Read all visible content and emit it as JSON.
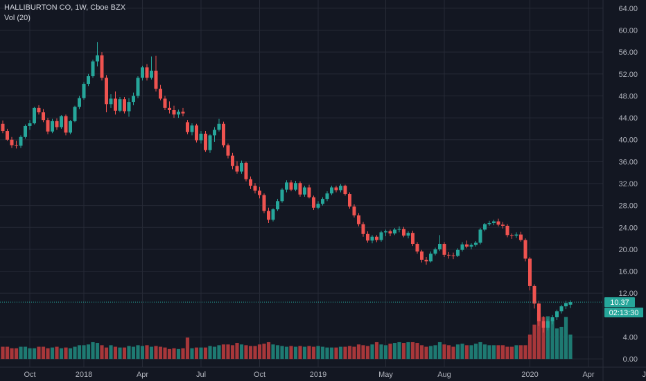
{
  "legend": {
    "title": "HALLIBURTON CO, 1W, Cboe BZX",
    "volume_label": "Vol (20)"
  },
  "colors": {
    "background": "#131722",
    "grid": "#262a36",
    "up": "#26a69a",
    "down": "#ef5350",
    "up_volume": "#1e7a72",
    "down_volume": "#a8373a",
    "text": "#b2b5be",
    "price_line": "#26a69a"
  },
  "chart_data": {
    "type": "candlestick",
    "y_axis": {
      "ticks": [
        "64.00",
        "60.00",
        "56.00",
        "52.00",
        "48.00",
        "44.00",
        "40.00",
        "36.00",
        "32.00",
        "28.00",
        "24.00",
        "20.00",
        "16.00",
        "12.00",
        "4.00",
        "0.00"
      ],
      "ylim": [
        -1.5,
        65.5
      ]
    },
    "x_axis": {
      "ticks": [
        "Oct",
        "2018",
        "Apr",
        "Jul",
        "Oct",
        "2019",
        "May",
        "Aug",
        "2020",
        "Apr",
        "Jul"
      ],
      "tick_weeks": [
        6,
        18,
        31,
        44,
        57,
        70,
        85,
        98,
        117,
        130,
        143
      ]
    },
    "last_price": {
      "value": 10.37,
      "label": "10.37",
      "countdown": "02:13:30"
    },
    "candles_weekly": [
      [
        42.9,
        43.5,
        41.2,
        41.6
      ],
      [
        41.6,
        42.0,
        39.8,
        40.0
      ],
      [
        40.0,
        40.5,
        38.5,
        39.0
      ],
      [
        39.0,
        39.8,
        38.4,
        38.9
      ],
      [
        38.9,
        40.8,
        38.5,
        40.5
      ],
      [
        40.5,
        42.8,
        40.2,
        42.5
      ],
      [
        42.5,
        43.6,
        41.8,
        43.0
      ],
      [
        43.0,
        46.0,
        42.8,
        45.8
      ],
      [
        45.8,
        46.3,
        44.6,
        45.0
      ],
      [
        45.0,
        45.6,
        43.2,
        43.6
      ],
      [
        43.6,
        44.0,
        41.0,
        41.5
      ],
      [
        41.5,
        43.8,
        41.2,
        43.4
      ],
      [
        43.4,
        43.9,
        41.8,
        42.3
      ],
      [
        42.3,
        44.5,
        42.0,
        44.3
      ],
      [
        44.3,
        44.6,
        40.8,
        41.3
      ],
      [
        41.3,
        43.6,
        41.0,
        43.4
      ],
      [
        43.4,
        46.2,
        43.2,
        46.0
      ],
      [
        46.0,
        48.0,
        45.6,
        47.6
      ],
      [
        47.6,
        50.5,
        47.3,
        50.2
      ],
      [
        50.2,
        52.0,
        49.8,
        51.6
      ],
      [
        51.6,
        54.6,
        51.3,
        54.3
      ],
      [
        54.3,
        57.8,
        53.4,
        55.4
      ],
      [
        55.4,
        56.0,
        50.8,
        51.3
      ],
      [
        51.3,
        51.8,
        45.0,
        46.5
      ],
      [
        46.5,
        48.3,
        45.8,
        47.5
      ],
      [
        47.5,
        48.8,
        44.6,
        45.3
      ],
      [
        45.3,
        47.8,
        45.0,
        47.4
      ],
      [
        47.4,
        47.8,
        44.8,
        45.2
      ],
      [
        45.2,
        47.6,
        44.2,
        46.9
      ],
      [
        46.9,
        48.6,
        46.3,
        48.0
      ],
      [
        48.0,
        51.6,
        47.6,
        51.3
      ],
      [
        51.3,
        53.5,
        50.8,
        53.2
      ],
      [
        53.2,
        53.8,
        50.8,
        51.3
      ],
      [
        51.3,
        55.2,
        51.0,
        52.6
      ],
      [
        52.6,
        55.3,
        48.8,
        49.3
      ],
      [
        49.3,
        50.0,
        47.2,
        47.5
      ],
      [
        47.5,
        48.0,
        45.4,
        45.8
      ],
      [
        45.8,
        47.0,
        44.8,
        45.4
      ],
      [
        45.4,
        46.2,
        44.0,
        44.6
      ],
      [
        44.6,
        45.5,
        44.0,
        45.1
      ],
      [
        45.1,
        45.8,
        44.3,
        44.8
      ],
      [
        43.2,
        43.6,
        41.0,
        41.4
      ],
      [
        41.4,
        43.0,
        40.8,
        42.6
      ],
      [
        42.6,
        42.9,
        39.5,
        39.9
      ],
      [
        39.9,
        41.6,
        39.3,
        41.1
      ],
      [
        41.1,
        41.6,
        37.8,
        38.1
      ],
      [
        38.1,
        41.0,
        37.6,
        40.8
      ],
      [
        40.8,
        42.3,
        39.6,
        41.8
      ],
      [
        41.8,
        43.8,
        41.5,
        42.9
      ],
      [
        42.9,
        43.3,
        38.6,
        39.0
      ],
      [
        39.0,
        39.3,
        36.6,
        37.1
      ],
      [
        37.1,
        37.6,
        34.6,
        35.2
      ],
      [
        35.2,
        36.1,
        33.8,
        34.2
      ],
      [
        34.2,
        36.2,
        33.8,
        35.8
      ],
      [
        35.8,
        36.0,
        32.4,
        32.8
      ],
      [
        32.8,
        33.3,
        31.0,
        31.6
      ],
      [
        31.6,
        32.1,
        30.2,
        30.7
      ],
      [
        30.7,
        31.4,
        29.3,
        29.9
      ],
      [
        29.9,
        30.2,
        26.6,
        27.0
      ],
      [
        27.0,
        27.6,
        24.8,
        25.4
      ],
      [
        25.4,
        27.5,
        25.1,
        27.3
      ],
      [
        27.3,
        29.2,
        27.0,
        28.8
      ],
      [
        28.8,
        31.2,
        28.5,
        30.9
      ],
      [
        30.9,
        32.6,
        30.4,
        32.2
      ],
      [
        32.2,
        32.6,
        30.6,
        30.9
      ],
      [
        30.9,
        32.5,
        30.6,
        32.1
      ],
      [
        32.1,
        32.4,
        29.6,
        30.0
      ],
      [
        30.0,
        31.6,
        29.6,
        31.3
      ],
      [
        31.3,
        31.8,
        29.3,
        29.5
      ],
      [
        29.5,
        29.8,
        27.2,
        27.6
      ],
      [
        27.6,
        28.8,
        27.3,
        28.3
      ],
      [
        28.3,
        29.5,
        28.0,
        29.2
      ],
      [
        29.2,
        30.6,
        28.8,
        30.2
      ],
      [
        30.2,
        31.6,
        29.9,
        31.3
      ],
      [
        31.3,
        31.6,
        30.4,
        30.8
      ],
      [
        30.8,
        31.9,
        30.4,
        31.6
      ],
      [
        31.6,
        31.8,
        29.8,
        30.1
      ],
      [
        30.1,
        30.4,
        27.4,
        27.8
      ],
      [
        27.8,
        28.2,
        25.8,
        26.2
      ],
      [
        26.2,
        26.6,
        24.2,
        24.6
      ],
      [
        24.6,
        25.0,
        22.3,
        22.8
      ],
      [
        22.8,
        23.3,
        21.2,
        21.6
      ],
      [
        21.6,
        22.6,
        21.1,
        22.3
      ],
      [
        22.3,
        22.6,
        21.3,
        21.7
      ],
      [
        21.7,
        23.4,
        21.4,
        23.1
      ],
      [
        23.1,
        23.6,
        22.4,
        23.3
      ],
      [
        23.3,
        23.6,
        22.4,
        22.9
      ],
      [
        22.9,
        23.9,
        22.6,
        23.6
      ],
      [
        23.6,
        24.2,
        23.1,
        23.7
      ],
      [
        23.7,
        24.1,
        22.2,
        22.5
      ],
      [
        22.5,
        23.3,
        22.0,
        23.0
      ],
      [
        23.0,
        23.4,
        20.6,
        21.0
      ],
      [
        21.0,
        21.3,
        19.2,
        19.6
      ],
      [
        19.6,
        19.9,
        17.6,
        18.1
      ],
      [
        18.1,
        18.6,
        17.2,
        17.8
      ],
      [
        17.8,
        19.6,
        17.6,
        19.2
      ],
      [
        19.2,
        20.3,
        18.9,
        20.0
      ],
      [
        20.0,
        22.6,
        19.7,
        21.0
      ],
      [
        21.0,
        21.3,
        18.6,
        19.0
      ],
      [
        19.0,
        19.5,
        18.3,
        18.9
      ],
      [
        18.9,
        19.4,
        18.2,
        18.8
      ],
      [
        18.8,
        20.2,
        18.6,
        19.9
      ],
      [
        19.9,
        21.3,
        19.6,
        20.9
      ],
      [
        20.9,
        21.6,
        20.2,
        20.5
      ],
      [
        20.5,
        21.1,
        20.0,
        20.8
      ],
      [
        20.8,
        21.5,
        20.5,
        21.2
      ],
      [
        21.2,
        23.9,
        20.9,
        23.6
      ],
      [
        23.6,
        24.8,
        23.3,
        24.6
      ],
      [
        24.6,
        25.2,
        24.3,
        24.8
      ],
      [
        24.8,
        25.4,
        24.4,
        25.1
      ],
      [
        25.1,
        25.6,
        24.2,
        24.5
      ],
      [
        24.5,
        25.0,
        23.8,
        24.3
      ],
      [
        24.3,
        24.6,
        22.2,
        22.6
      ],
      [
        22.6,
        22.9,
        21.9,
        22.5
      ],
      [
        22.5,
        23.1,
        22.1,
        22.7
      ],
      [
        22.7,
        23.2,
        21.4,
        21.7
      ],
      [
        21.7,
        22.0,
        17.8,
        18.3
      ],
      [
        18.3,
        18.6,
        12.5,
        13.3
      ],
      [
        13.3,
        13.6,
        9.2,
        10.1
      ],
      [
        10.1,
        10.6,
        6.0,
        6.9
      ],
      [
        6.9,
        7.8,
        4.8,
        5.7
      ],
      [
        5.7,
        7.3,
        5.2,
        6.9
      ],
      [
        6.9,
        8.0,
        6.3,
        7.6
      ],
      [
        7.6,
        9.0,
        7.1,
        8.7
      ],
      [
        8.7,
        9.9,
        8.3,
        9.6
      ],
      [
        9.6,
        10.6,
        9.1,
        10.2
      ],
      [
        9.9,
        10.7,
        9.3,
        10.37
      ]
    ],
    "volume_note": "volume bars in share-count units, relative",
    "volumes": [
      16,
      16,
      14,
      14,
      16,
      16,
      14,
      14,
      16,
      16,
      14,
      15,
      16,
      14,
      15,
      14,
      16,
      18,
      18,
      19,
      22,
      21,
      18,
      15,
      18,
      16,
      15,
      15,
      17,
      16,
      18,
      17,
      18,
      16,
      17,
      16,
      15,
      13,
      14,
      13,
      14,
      28,
      14,
      15,
      15,
      15,
      17,
      16,
      18,
      19,
      19,
      18,
      21,
      19,
      18,
      17,
      17,
      19,
      20,
      22,
      19,
      18,
      17,
      16,
      17,
      16,
      17,
      16,
      17,
      16,
      17,
      16,
      15,
      15,
      15,
      16,
      16,
      17,
      16,
      19,
      18,
      17,
      19,
      22,
      19,
      18,
      20,
      21,
      22,
      21,
      22,
      22,
      21,
      18,
      16,
      17,
      18,
      22,
      19,
      18,
      16,
      19,
      20,
      18,
      18,
      20,
      22,
      19,
      18,
      18,
      18,
      18,
      16,
      16,
      18,
      18,
      18,
      32,
      45,
      60,
      55,
      56,
      52,
      40,
      42,
      55,
      32
    ]
  }
}
